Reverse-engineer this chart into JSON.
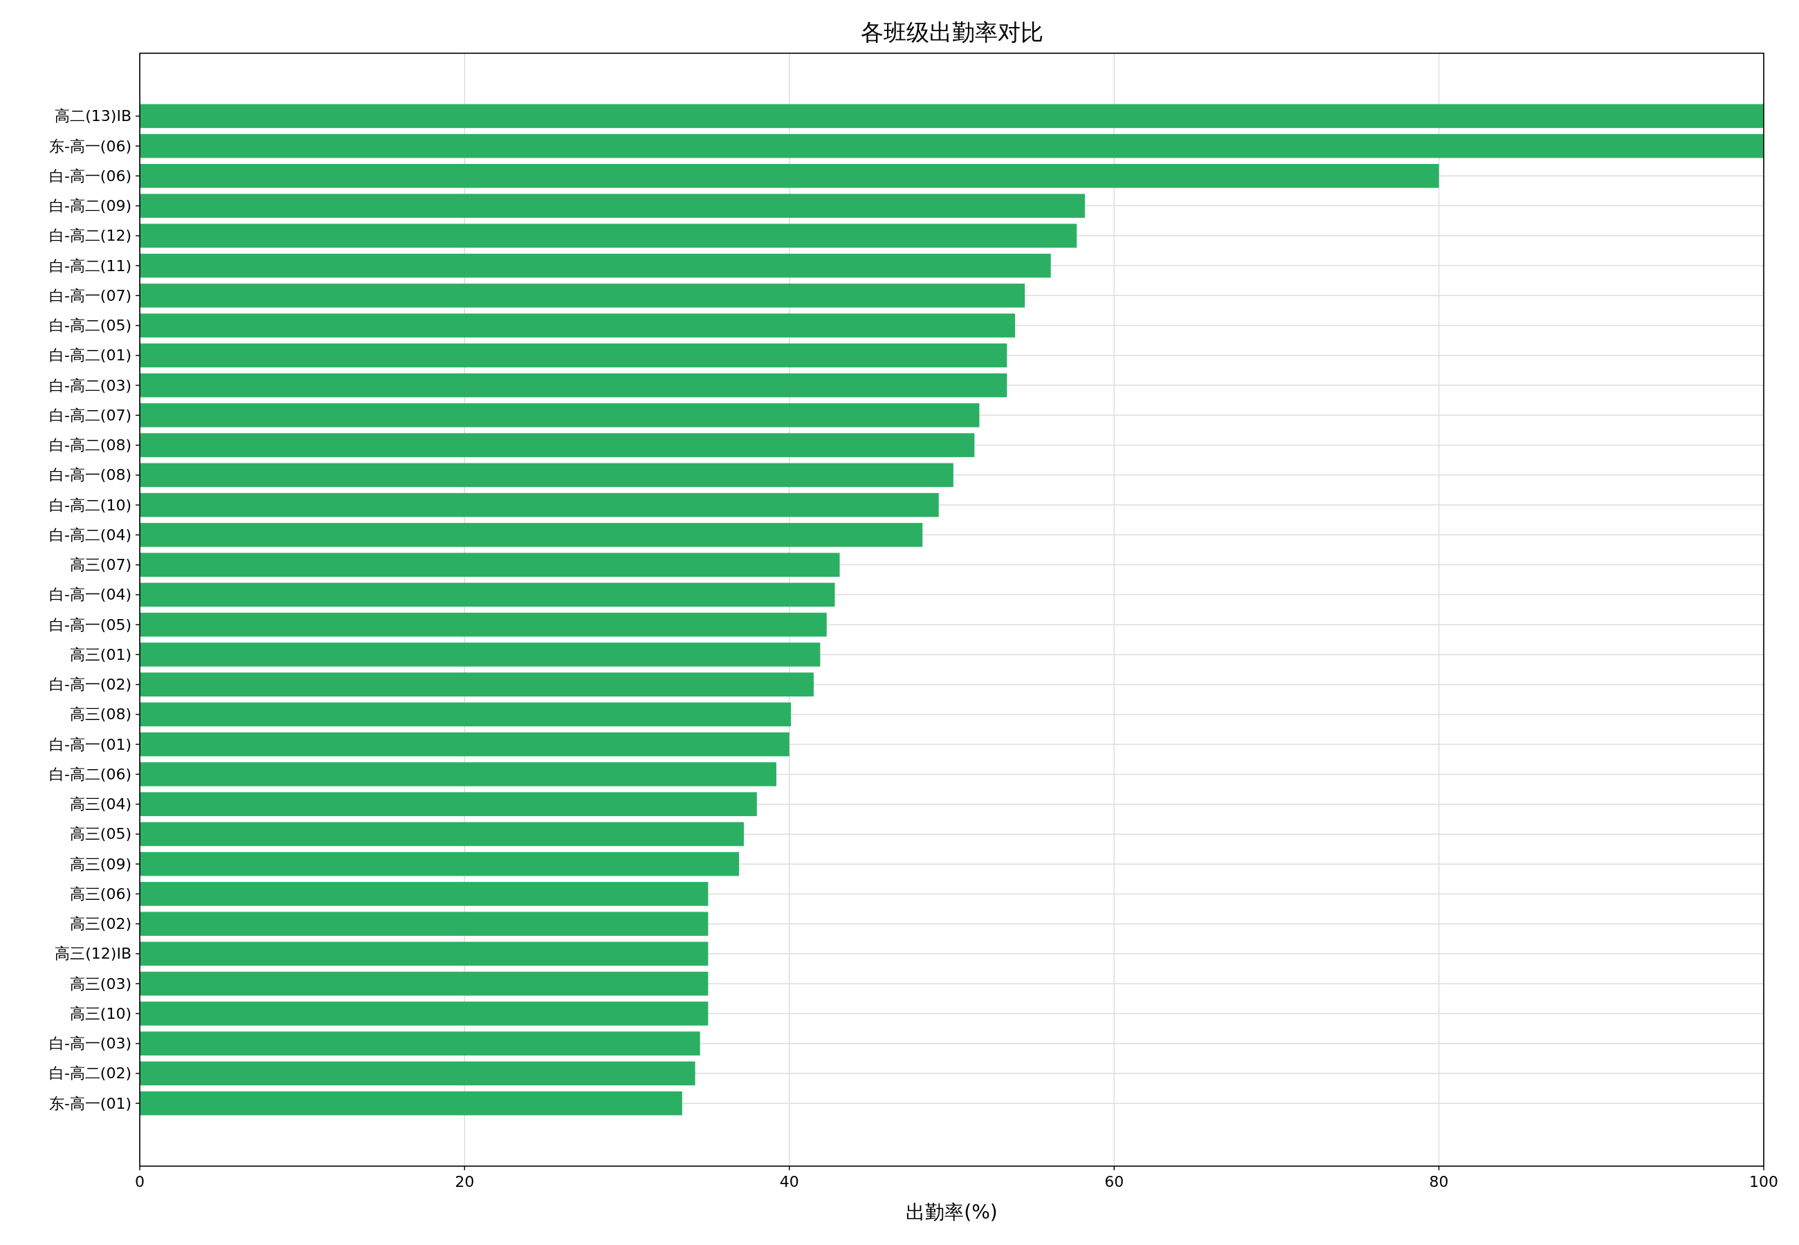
{
  "chart_data": {
    "type": "bar",
    "orientation": "horizontal",
    "title": "各班级出勤率对比",
    "xlabel": "出勤率(%)",
    "categories": [
      "高二(13)IB",
      "东-高一(06)",
      "白-高一(06)",
      "白-高二(09)",
      "白-高二(12)",
      "白-高二(11)",
      "白-高一(07)",
      "白-高二(05)",
      "白-高二(01)",
      "白-高二(03)",
      "白-高二(07)",
      "白-高二(08)",
      "白-高一(08)",
      "白-高二(10)",
      "白-高二(04)",
      "高三(07)",
      "白-高一(04)",
      "白-高一(05)",
      "高三(01)",
      "白-高一(02)",
      "高三(08)",
      "白-高一(01)",
      "白-高二(06)",
      "高三(04)",
      "高三(05)",
      "高三(09)",
      "高三(06)",
      "高三(02)",
      "高三(12)IB",
      "高三(03)",
      "高三(10)",
      "白-高一(03)",
      "白-高二(02)",
      "东-高一(01)"
    ],
    "values": [
      100,
      100,
      80.0,
      58.2,
      57.7,
      56.1,
      54.5,
      53.9,
      53.4,
      53.4,
      51.7,
      51.4,
      50.1,
      49.2,
      48.2,
      43.1,
      42.8,
      42.3,
      41.9,
      41.5,
      40.1,
      40.0,
      39.2,
      38.0,
      37.2,
      36.9,
      35.0,
      35.0,
      35.0,
      35.0,
      35.0,
      34.5,
      34.2,
      33.4
    ],
    "color": "#27ae60",
    "xlim": [
      0,
      100
    ],
    "xticks": [
      0,
      20,
      40,
      60,
      80,
      100
    ],
    "grid": true
  }
}
